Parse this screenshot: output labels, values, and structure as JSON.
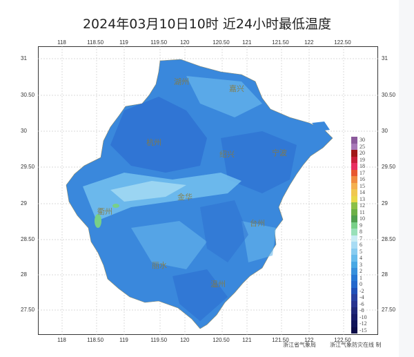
{
  "title": "2024年03月10日10时  近24小时最低温度",
  "lon_ticks": [
    "118",
    "118.50",
    "119",
    "119.50",
    "120",
    "120.50",
    "121",
    "121.50",
    "122",
    "122.50"
  ],
  "lat_ticks": [
    "31",
    "30.50",
    "30",
    "29.50",
    "29",
    "28.50",
    "28",
    "27.50"
  ],
  "cities": [
    "湖州",
    "嘉兴",
    "杭州",
    "绍兴",
    "宁波",
    "衢州",
    "金华",
    "台州",
    "丽水",
    "温州"
  ],
  "legend": {
    "labels": [
      "30",
      "25",
      "20",
      "19",
      "18",
      "17",
      "16",
      "15",
      "14",
      "13",
      "12",
      "11",
      "10",
      "9",
      "8",
      "7",
      "6",
      "5",
      "4",
      "3",
      "2",
      "1",
      "0",
      "-2",
      "-4",
      "-6",
      "-8",
      "-10",
      "-12",
      "-15"
    ],
    "colors": [
      "#8c5a9c",
      "#a878b8",
      "#a01818",
      "#c8203a",
      "#e83060",
      "#e85830",
      "#f08c40",
      "#f4b050",
      "#f0c850",
      "#e8d848",
      "#8cc048",
      "#6cb048",
      "#50a050",
      "#78d088",
      "#98e0b8",
      "#c8ecf4",
      "#a8dcf4",
      "#88ccf0",
      "#68bcec",
      "#48a8e4",
      "#3890dc",
      "#2878d4",
      "#2468cc",
      "#2050b8",
      "#2840a0",
      "#283490",
      "#202878",
      "#181c68",
      "#101458",
      "#0c0c48"
    ]
  },
  "credit": [
    "浙江省气象局",
    "浙江气象防灾在线 制"
  ]
}
